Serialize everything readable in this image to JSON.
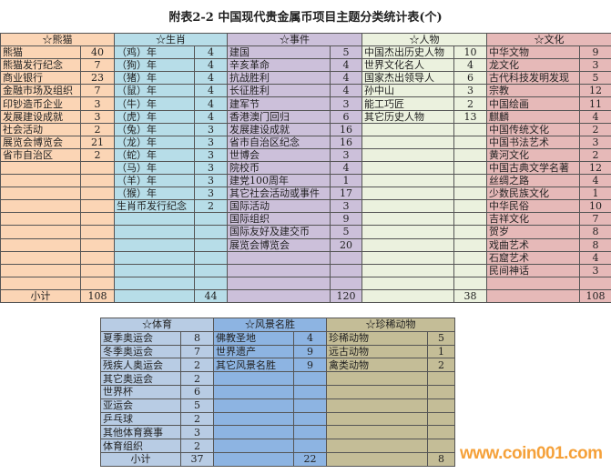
{
  "title": "附表2-2   中国现代贵金属币项目主题分类统计表(个)",
  "subtotal_label": "小计",
  "watermark": "www.coin001.com",
  "top_table": [
    {
      "key": "panda",
      "header": "☆熊猫",
      "color": "#fbd5b5",
      "subtotal": "108",
      "show_label": true,
      "items": [
        [
          "熊猫",
          "40"
        ],
        [
          "熊猫发行纪念",
          "7"
        ],
        [
          "商业银行",
          "23"
        ],
        [
          "金融市场及组织",
          "7"
        ],
        [
          "印钞造币企业",
          "3"
        ],
        [
          "发展建设成就",
          "3"
        ],
        [
          "社会活动",
          "2"
        ],
        [
          "展览会博览会",
          "21"
        ],
        [
          "省市自治区",
          "2"
        ]
      ]
    },
    {
      "key": "zodiac",
      "header": "☆生肖",
      "color": "#b7dde8",
      "subtotal": "44",
      "items": [
        [
          "（鸡）年",
          "4"
        ],
        [
          "（狗）年",
          "4"
        ],
        [
          "（猪）年",
          "4"
        ],
        [
          "（鼠）年",
          "4"
        ],
        [
          "（牛）年",
          "4"
        ],
        [
          "（虎）年",
          "4"
        ],
        [
          "（兔）年",
          "3"
        ],
        [
          "（龙）年",
          "3"
        ],
        [
          "（蛇）年",
          "3"
        ],
        [
          "（马）年",
          "3"
        ],
        [
          "（羊）年",
          "3"
        ],
        [
          "（猴）年",
          "3"
        ],
        [
          "生肖币发行纪念",
          "2"
        ]
      ]
    },
    {
      "key": "events",
      "header": "☆事件",
      "color": "#ccc0da",
      "subtotal": "120",
      "items": [
        [
          "建国",
          "5"
        ],
        [
          "辛亥革命",
          "4"
        ],
        [
          "抗战胜利",
          "4"
        ],
        [
          "长征胜利",
          "4"
        ],
        [
          "建军节",
          "3"
        ],
        [
          "香港澳门回归",
          "6"
        ],
        [
          "发展建设成就",
          "16"
        ],
        [
          "省市自治区纪念",
          "16"
        ],
        [
          "世博会",
          "3"
        ],
        [
          "院校币",
          "4"
        ],
        [
          "建党100周年",
          "1"
        ],
        [
          "其它社会活动或事件",
          "17"
        ],
        [
          "国际活动",
          "3"
        ],
        [
          "国际组织",
          "9"
        ],
        [
          "国际友好及建交币",
          "5"
        ],
        [
          "展览会博览会",
          "20"
        ]
      ]
    },
    {
      "key": "people",
      "header": "☆人物",
      "color": "#ebf1de",
      "subtotal": "38",
      "items": [
        [
          "中国杰出历史人物",
          "10"
        ],
        [
          "世界文化名人",
          "4"
        ],
        [
          "国家杰出领导人",
          "6"
        ],
        [
          "孙中山",
          "3"
        ],
        [
          "能工巧匠",
          "2"
        ],
        [
          "其它历史人物",
          "13"
        ]
      ]
    },
    {
      "key": "culture",
      "header": "☆文化",
      "color": "#e6b9b8",
      "subtotal": "108",
      "items": [
        [
          "中华文物",
          "9"
        ],
        [
          "龙文化",
          "3"
        ],
        [
          "古代科技发明发现",
          "5"
        ],
        [
          "宗教",
          "12"
        ],
        [
          "中国绘画",
          "11"
        ],
        [
          "麒麟",
          "4"
        ],
        [
          "中国传统文化",
          "2"
        ],
        [
          "中国书法艺术",
          "3"
        ],
        [
          "黄河文化",
          "2"
        ],
        [
          "中国古典文学名著",
          "12"
        ],
        [
          "丝绸之路",
          "4"
        ],
        [
          "少数民族文化",
          "1"
        ],
        [
          "中华民俗",
          "10"
        ],
        [
          "吉祥文化",
          "7"
        ],
        [
          "贺岁",
          "8"
        ],
        [
          "戏曲艺术",
          "8"
        ],
        [
          "石窟艺术",
          "4"
        ],
        [
          "民间神话",
          "3"
        ]
      ]
    }
  ],
  "bottom_table": [
    {
      "key": "sports",
      "header": "☆体育",
      "color": "#b8cce4",
      "subtotal": "37",
      "show_label": true,
      "items": [
        [
          "夏季奥运会",
          "8"
        ],
        [
          "冬季奥运会",
          "7"
        ],
        [
          "残疾人奥运会",
          "2"
        ],
        [
          "其它奥运会",
          "2"
        ],
        [
          "世界杯",
          "6"
        ],
        [
          "亚运会",
          "5"
        ],
        [
          "乒乓球",
          "2"
        ],
        [
          "其他体育赛事",
          "3"
        ],
        [
          "体育组织",
          "2"
        ]
      ]
    },
    {
      "key": "scenery",
      "header": "☆风景名胜",
      "color": "#8db4e2",
      "subtotal": "22",
      "items": [
        [
          "佛教圣地",
          "4"
        ],
        [
          "世界遗产",
          "9"
        ],
        [
          "其它风景名胜",
          "9"
        ]
      ]
    },
    {
      "key": "animals",
      "header": "☆珍稀动物",
      "color": "#c4bd97",
      "subtotal": "8",
      "items": [
        [
          "珍稀动物",
          "5"
        ],
        [
          "远古动物",
          "1"
        ],
        [
          "禽类动物",
          "2"
        ]
      ]
    }
  ]
}
